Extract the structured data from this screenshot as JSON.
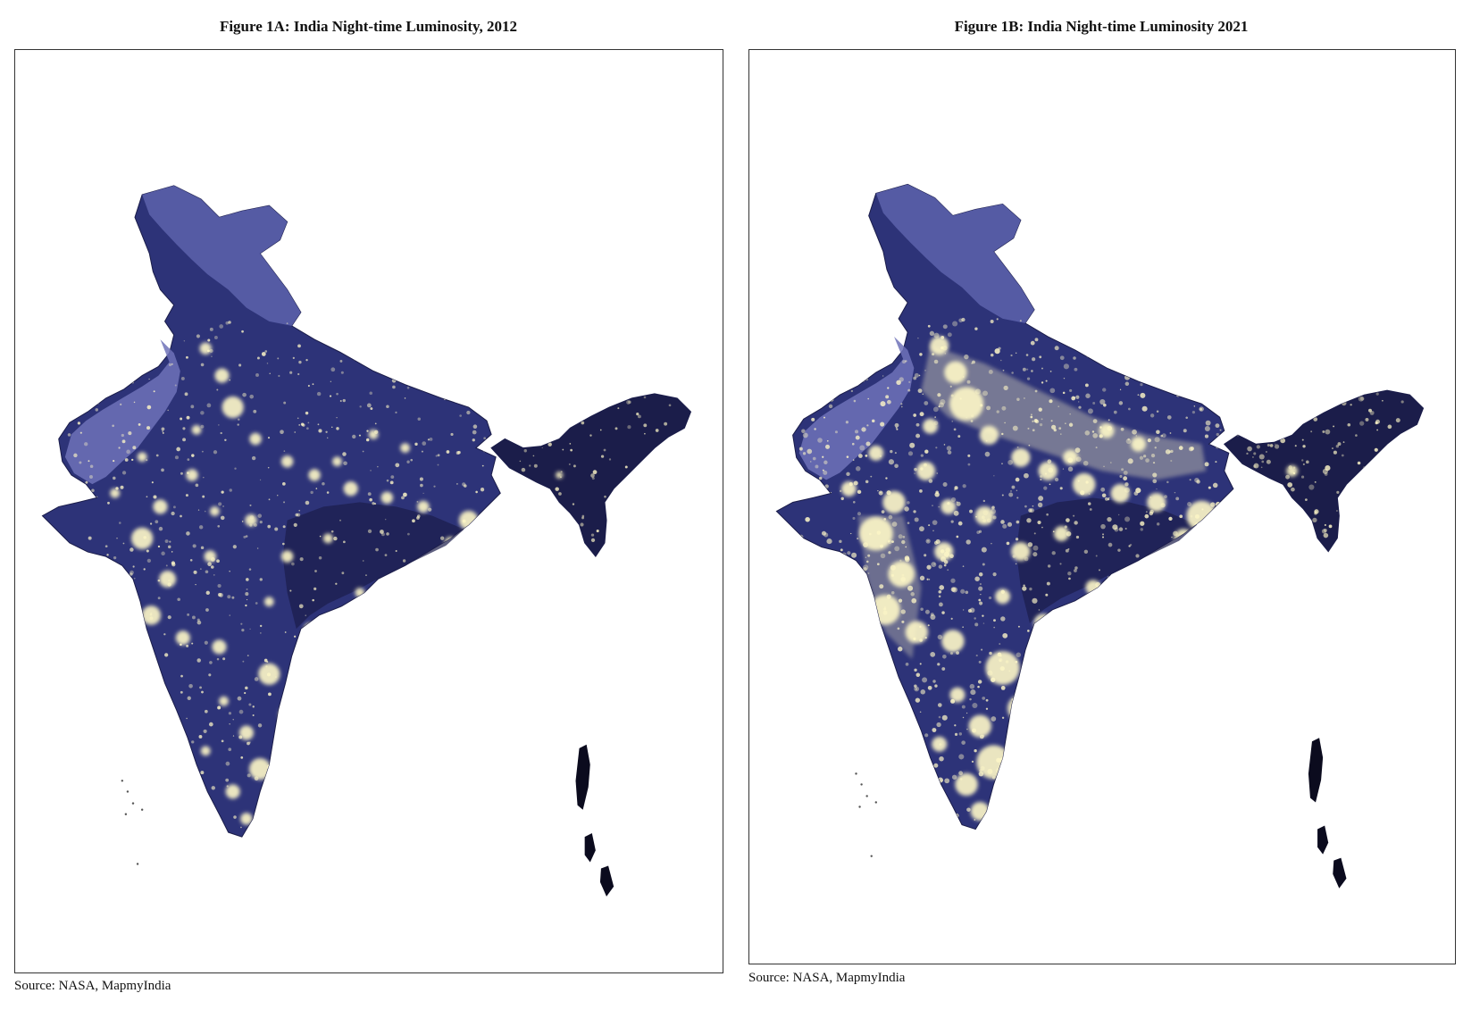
{
  "figures": [
    {
      "title": "Figure 1A: India Night-time Luminosity, 2012",
      "source": "Source: NASA, MapmyIndia",
      "brightness": 0.45
    },
    {
      "title": "Figure 1B: India Night-time Luminosity 2021",
      "source": "Source: NASA, MapmyIndia",
      "brightness": 1.0
    }
  ],
  "colors": {
    "land_dark": "#1b1d4a",
    "land_mid": "#2d3378",
    "land_highland": "#5a5fa8",
    "land_desert": "#6e72b8",
    "light": "#fff8c8",
    "frame_border": "#333333",
    "background": "#ffffff"
  }
}
